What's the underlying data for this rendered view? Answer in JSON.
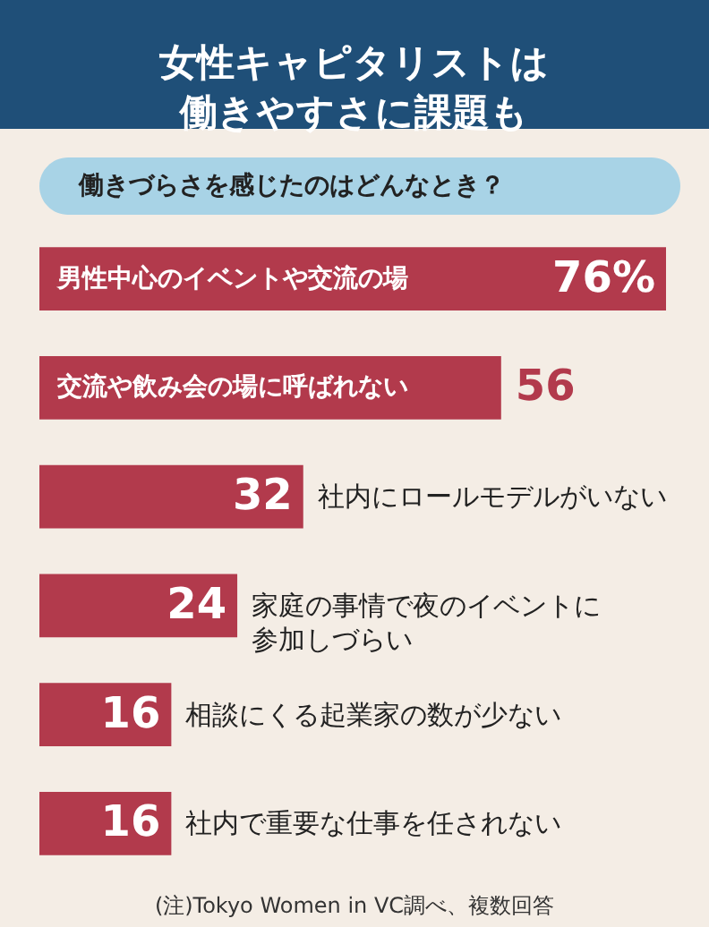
{
  "chart_data": {
    "type": "bar",
    "orientation": "horizontal",
    "title": "女性キャピタリストは働きやすさに課題も",
    "subtitle": "働きづらさを感じたのはどんなとき？",
    "categories": [
      "男性中心のイベントや交流の場",
      "交流や飲み会の場に呼ばれない",
      "社内にロールモデルがいない",
      "家庭の事情で夜のイベントに参加しづらい",
      "相談にくる起業家の数が少ない",
      "社内で重要な仕事を任されない"
    ],
    "values": [
      76,
      56,
      32,
      24,
      16,
      16
    ],
    "value_labels": [
      "76%",
      "56",
      "32",
      "24",
      "16",
      "16"
    ],
    "color": "#b23a4c",
    "tick_labels": false,
    "annotations": [
      "(注)Tokyo Women in VC調べ、複数回答"
    ]
  }
}
